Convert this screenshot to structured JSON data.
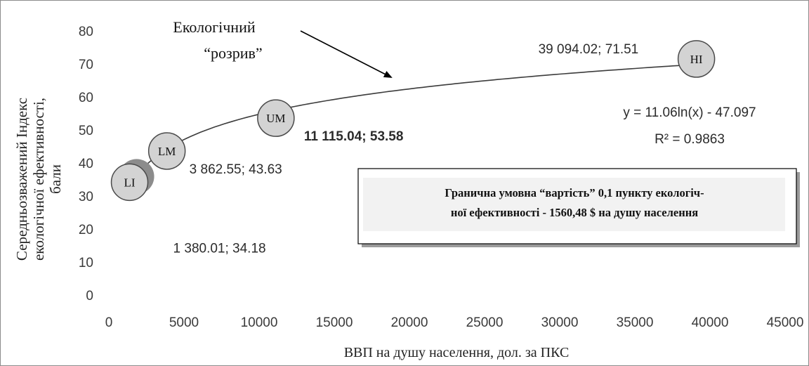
{
  "chart_data": {
    "type": "scatter",
    "ylabel_lines": [
      "Середньозважений Індекс",
      "екологічної ефективності,",
      "бали"
    ],
    "xlabel": "ВВП на душу населення,  дол.  за ПКС",
    "xlim": [
      0,
      45000
    ],
    "ylim": [
      0,
      80
    ],
    "x_ticks": [
      "0",
      "5000",
      "10000",
      "15000",
      "20000",
      "25000",
      "30000",
      "35000",
      "40000",
      "45000"
    ],
    "y_ticks": [
      "0",
      "10",
      "20",
      "30",
      "40",
      "50",
      "60",
      "70",
      "80"
    ],
    "grid": false,
    "points": [
      {
        "label": "LI",
        "x": 1380.01,
        "y": 34.18,
        "value_label": "1 380.01; 34.18"
      },
      {
        "label": "LM",
        "x": 3862.55,
        "y": 43.63,
        "value_label": "3 862.55; 43.63"
      },
      {
        "label": "UM",
        "x": 11115.04,
        "y": 53.58,
        "value_label": "11 115.04; 53.58"
      },
      {
        "label": "HI",
        "x": 39094.02,
        "y": 71.51,
        "value_label": "39 094.02; 71.51"
      }
    ],
    "trendline": {
      "type": "logarithmic",
      "a": 11.06,
      "b": -47.097,
      "x_from": 1380.01,
      "x_to": 39094.02
    },
    "equation": "y = 11.06ln(x) - 47.097",
    "r_squared": "R² = 0.9863",
    "annotation_lines": [
      "Екологічний",
      "“розрив”"
    ],
    "info_box_lines": [
      "Гранична умовна  “вартість” 0,1 пункту  екологіч-",
      "ної ефективності  -  1560,48 $ на душу населення"
    ]
  }
}
